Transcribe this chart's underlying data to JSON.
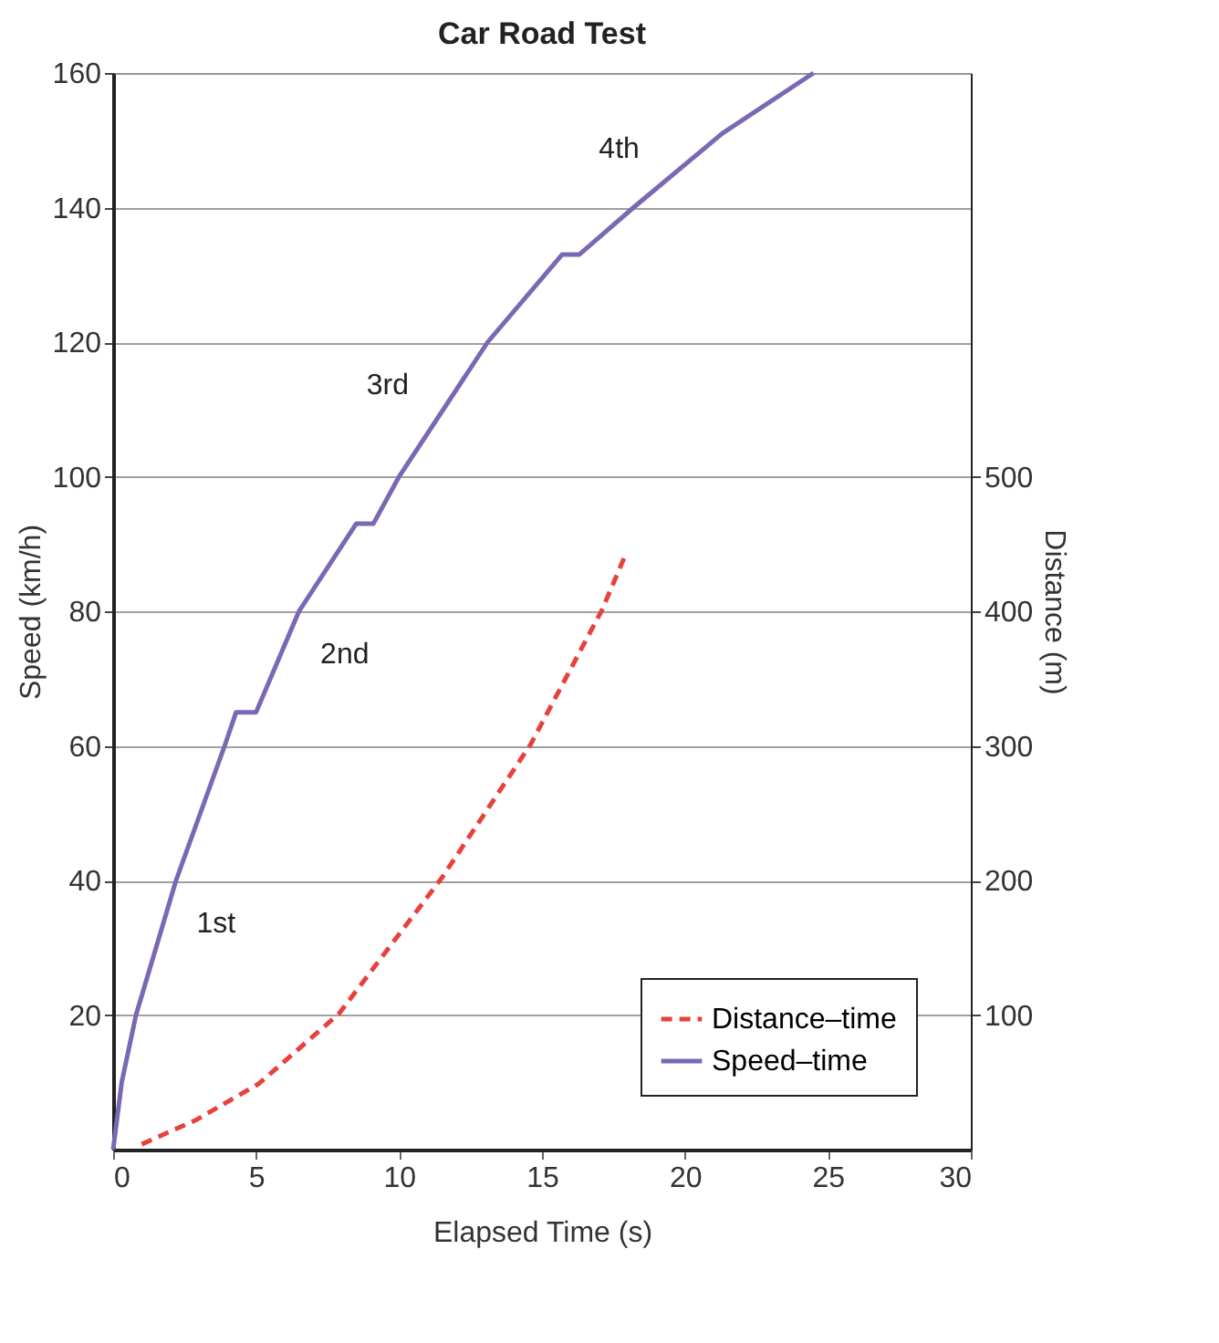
{
  "chart_data": {
    "type": "line",
    "title": "Car Road Test",
    "xlabel": "Elapsed Time (s)",
    "ylabel": "Speed (km/h)",
    "y2label": "Distance (m)",
    "xlim": [
      0,
      30
    ],
    "xticks": [
      0,
      5,
      10,
      15,
      20,
      25,
      30
    ],
    "ylim": [
      0,
      160
    ],
    "yticks": [
      20,
      40,
      60,
      80,
      100,
      120,
      140,
      160
    ],
    "y2lim": [
      0,
      800
    ],
    "y2ticks": [
      100,
      200,
      300,
      400,
      500
    ],
    "grid": "y",
    "legend": "bottom right",
    "marker": "none",
    "series": [
      {
        "name": "Distance–time",
        "color": "#e8413c",
        "line_style": "dashed",
        "axis": "y2",
        "x": [
          1.0,
          2.9,
          5.1,
          7.9,
          11.5,
          14.6,
          17.1,
          17.9
        ],
        "values": [
          4,
          22,
          49,
          101,
          202,
          301,
          401,
          441
        ]
      },
      {
        "name": "Speed–time",
        "color": "#7b68b5",
        "line_style": "solid",
        "x": [
          0,
          0.3,
          0.8,
          2.2,
          3.9,
          4.3,
          5.0,
          6.5,
          8.5,
          9.1,
          10.0,
          13.1,
          15.7,
          16.3,
          18.2,
          21.3,
          24.5
        ],
        "values": [
          0,
          10,
          20,
          40,
          60,
          65,
          65,
          80,
          93,
          93,
          100,
          120,
          133,
          133,
          140,
          151,
          160
        ]
      }
    ],
    "annotations": [
      "1st",
      "2nd",
      "3rd",
      "4th"
    ]
  }
}
